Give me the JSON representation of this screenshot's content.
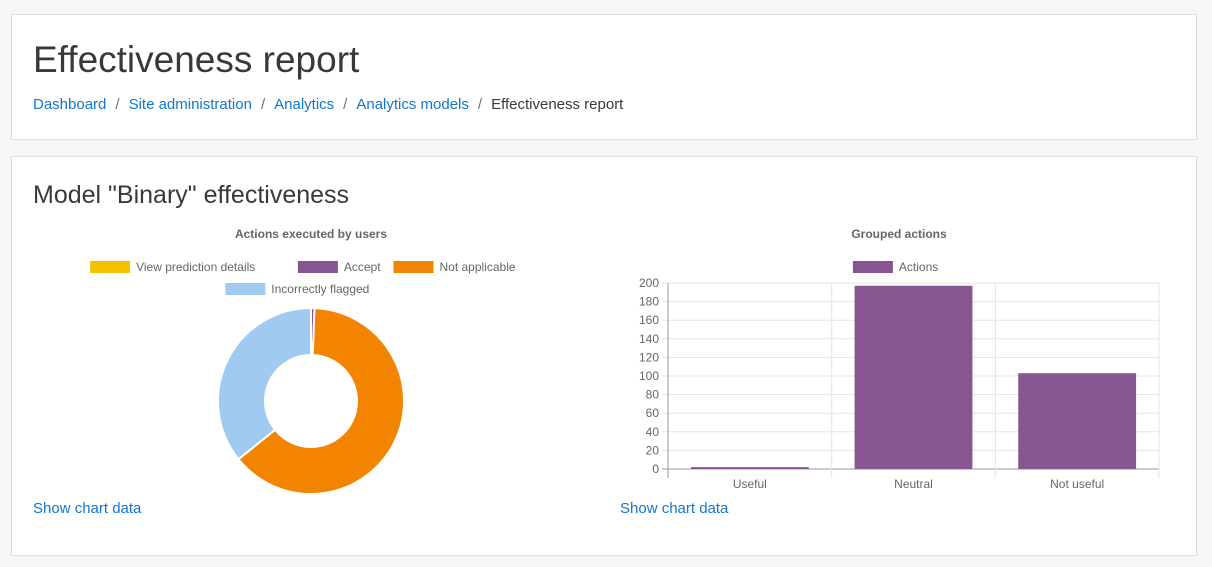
{
  "page": {
    "title": "Effectiveness report",
    "breadcrumb": [
      {
        "label": "Dashboard"
      },
      {
        "label": "Site administration"
      },
      {
        "label": "Analytics"
      },
      {
        "label": "Analytics models"
      },
      {
        "label": "Effectiveness report"
      }
    ]
  },
  "section": {
    "title": "Model \"Binary\" effectiveness",
    "show_chart_data_label": "Show chart data"
  },
  "chart_data": [
    {
      "type": "pie",
      "title": "Actions executed by users",
      "donut": true,
      "legend_position": "top",
      "categories": [
        "View prediction details",
        "Accept",
        "Not applicable",
        "Incorrectly flagged"
      ],
      "values": [
        0,
        2,
        210,
        118
      ],
      "colors": [
        "#f3c300",
        "#875692",
        "#f38400",
        "#a1caf1"
      ]
    },
    {
      "type": "bar",
      "title": "Grouped actions",
      "legend_position": "top",
      "categories": [
        "Useful",
        "Neutral",
        "Not useful"
      ],
      "series": [
        {
          "name": "Actions",
          "values": [
            2,
            197,
            103
          ],
          "color": "#875692"
        }
      ],
      "ylim": [
        0,
        200
      ],
      "yticks": [
        0,
        20,
        40,
        60,
        80,
        100,
        120,
        140,
        160,
        180,
        200
      ],
      "grid": true
    }
  ]
}
